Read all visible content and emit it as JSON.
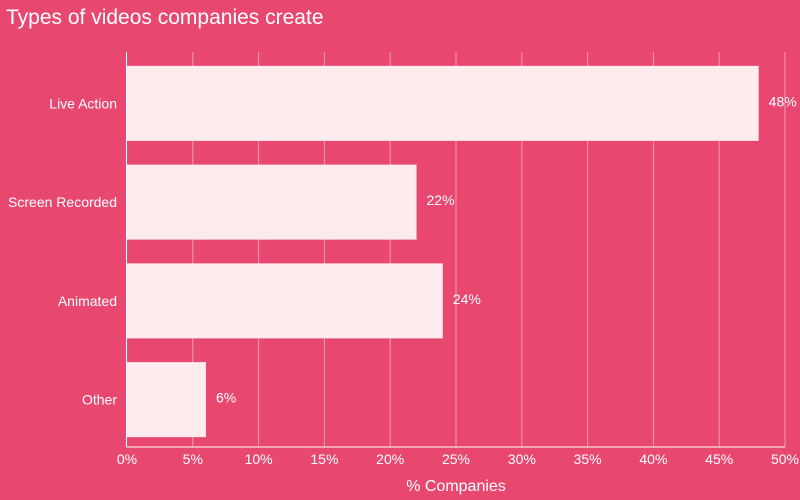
{
  "colors": {
    "background": "#e84870",
    "bar_fill": "#fdebee",
    "text": "#ffffff",
    "grid": "#f39ab0",
    "axis": "#ffffff"
  },
  "chart_data": {
    "type": "bar",
    "orientation": "horizontal",
    "title": "Types of videos companies create",
    "xlabel": "% Companies",
    "ylabel": "",
    "categories": [
      "Live Action",
      "Screen Recorded",
      "Animated",
      "Other"
    ],
    "values": [
      48,
      22,
      24,
      6
    ],
    "data_labels": [
      "48%",
      "22%",
      "24%",
      "6%"
    ],
    "xlim": [
      0,
      50
    ],
    "x_ticks": [
      0,
      5,
      10,
      15,
      20,
      25,
      30,
      35,
      40,
      45,
      50
    ],
    "x_tick_labels": [
      "0%",
      "5%",
      "10%",
      "15%",
      "20%",
      "25%",
      "30%",
      "35%",
      "40%",
      "45%",
      "50%"
    ],
    "grid": true,
    "legend": "none"
  }
}
